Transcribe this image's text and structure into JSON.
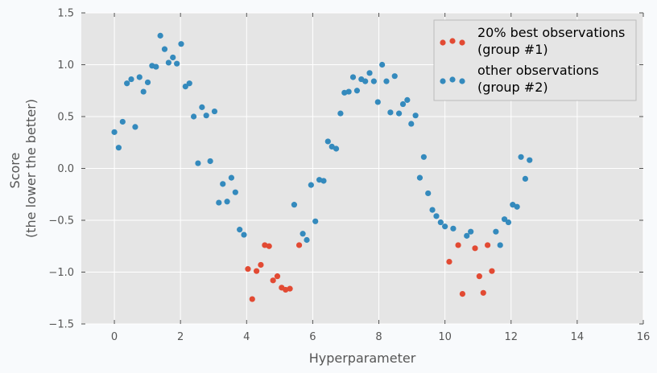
{
  "chart_data": {
    "type": "scatter",
    "xlabel": "Hyperparameter",
    "ylabel_lines": [
      "Score",
      "(the lower the better)"
    ],
    "xlim": [
      -1,
      16
    ],
    "ylim": [
      -1.5,
      1.5
    ],
    "xticks": [
      0,
      2,
      4,
      6,
      8,
      10,
      12,
      14,
      16
    ],
    "yticks": [
      -1.5,
      -1.0,
      -0.5,
      0.0,
      0.5,
      1.0,
      1.5
    ],
    "xtick_labels": [
      "0",
      "2",
      "4",
      "6",
      "8",
      "10",
      "12",
      "14",
      "16"
    ],
    "ytick_labels": [
      "−1.5",
      "−1.0",
      "−0.5",
      "0.0",
      "0.5",
      "1.0",
      "1.5"
    ],
    "grid": true,
    "legend_position": "top-right",
    "colors": {
      "background": "#e5e5e5",
      "grid": "#ffffff",
      "axis": "#bcbcbc"
    },
    "series": [
      {
        "name_lines": [
          "20% best observations",
          "(group #1)"
        ],
        "color": "#e24a33",
        "points": [
          [
            4.04,
            -0.97
          ],
          [
            4.17,
            -1.26
          ],
          [
            4.3,
            -0.99
          ],
          [
            4.43,
            -0.93
          ],
          [
            4.55,
            -0.74
          ],
          [
            4.68,
            -0.75
          ],
          [
            4.8,
            -1.08
          ],
          [
            4.93,
            -1.04
          ],
          [
            5.06,
            -1.15
          ],
          [
            5.18,
            -1.17
          ],
          [
            5.31,
            -1.16
          ],
          [
            5.59,
            -0.74
          ],
          [
            10.13,
            -0.9
          ],
          [
            10.4,
            -0.74
          ],
          [
            10.53,
            -1.21
          ],
          [
            10.91,
            -0.77
          ],
          [
            11.04,
            -1.04
          ],
          [
            11.16,
            -1.2
          ],
          [
            11.29,
            -0.74
          ],
          [
            11.42,
            -0.99
          ]
        ]
      },
      {
        "name_lines": [
          "other observations",
          "(group #2)"
        ],
        "color": "#348abd",
        "points": [
          [
            0.0,
            0.35
          ],
          [
            0.13,
            0.2
          ],
          [
            0.25,
            0.45
          ],
          [
            0.38,
            0.82
          ],
          [
            0.51,
            0.86
          ],
          [
            0.63,
            0.4
          ],
          [
            0.76,
            0.88
          ],
          [
            0.88,
            0.74
          ],
          [
            1.01,
            0.83
          ],
          [
            1.14,
            0.99
          ],
          [
            1.26,
            0.98
          ],
          [
            1.39,
            1.28
          ],
          [
            1.52,
            1.15
          ],
          [
            1.64,
            1.02
          ],
          [
            1.77,
            1.07
          ],
          [
            1.89,
            1.01
          ],
          [
            2.02,
            1.2
          ],
          [
            2.15,
            0.79
          ],
          [
            2.27,
            0.82
          ],
          [
            2.4,
            0.5
          ],
          [
            2.53,
            0.05
          ],
          [
            2.65,
            0.59
          ],
          [
            2.78,
            0.51
          ],
          [
            2.9,
            0.07
          ],
          [
            3.03,
            0.55
          ],
          [
            3.16,
            -0.33
          ],
          [
            3.28,
            -0.15
          ],
          [
            3.41,
            -0.32
          ],
          [
            3.54,
            -0.09
          ],
          [
            3.66,
            -0.23
          ],
          [
            3.79,
            -0.59
          ],
          [
            3.92,
            -0.64
          ],
          [
            5.44,
            -0.35
          ],
          [
            5.7,
            -0.63
          ],
          [
            5.82,
            -0.69
          ],
          [
            5.95,
            -0.16
          ],
          [
            6.08,
            -0.51
          ],
          [
            6.2,
            -0.11
          ],
          [
            6.33,
            -0.12
          ],
          [
            6.46,
            0.26
          ],
          [
            6.58,
            0.21
          ],
          [
            6.71,
            0.19
          ],
          [
            6.84,
            0.53
          ],
          [
            6.96,
            0.73
          ],
          [
            7.09,
            0.74
          ],
          [
            7.22,
            0.88
          ],
          [
            7.34,
            0.75
          ],
          [
            7.47,
            0.86
          ],
          [
            7.59,
            0.84
          ],
          [
            7.72,
            0.92
          ],
          [
            7.85,
            0.84
          ],
          [
            7.97,
            0.64
          ],
          [
            8.1,
            1.0
          ],
          [
            8.23,
            0.84
          ],
          [
            8.35,
            0.54
          ],
          [
            8.48,
            0.89
          ],
          [
            8.61,
            0.53
          ],
          [
            8.73,
            0.62
          ],
          [
            8.86,
            0.66
          ],
          [
            8.98,
            0.43
          ],
          [
            9.11,
            0.51
          ],
          [
            9.24,
            -0.09
          ],
          [
            9.36,
            0.11
          ],
          [
            9.49,
            -0.24
          ],
          [
            9.62,
            -0.4
          ],
          [
            9.74,
            -0.46
          ],
          [
            9.87,
            -0.52
          ],
          [
            10.0,
            -0.56
          ],
          [
            10.25,
            -0.58
          ],
          [
            10.66,
            -0.65
          ],
          [
            10.78,
            -0.61
          ],
          [
            11.54,
            -0.61
          ],
          [
            11.67,
            -0.74
          ],
          [
            11.8,
            -0.49
          ],
          [
            11.92,
            -0.52
          ],
          [
            12.05,
            -0.35
          ],
          [
            12.18,
            -0.37
          ],
          [
            12.3,
            0.11
          ],
          [
            12.43,
            -0.1
          ],
          [
            12.56,
            0.08
          ]
        ]
      }
    ]
  }
}
